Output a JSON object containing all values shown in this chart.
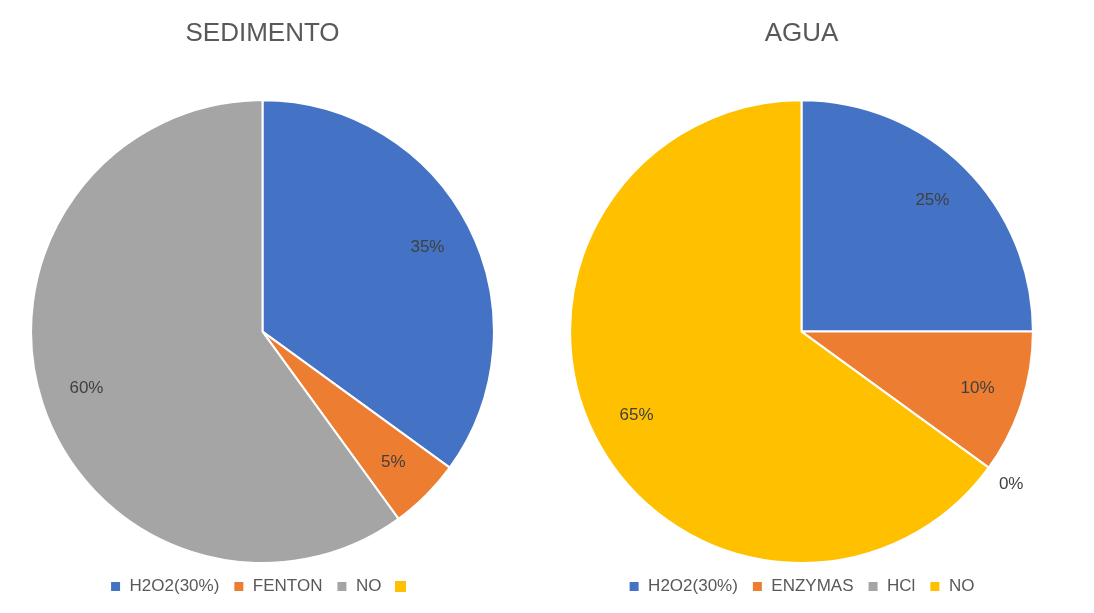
{
  "chart_data": [
    {
      "type": "pie",
      "title": "SEDIMENTO",
      "categories": [
        "H2O2(30%)",
        "FENTON",
        "NO",
        null
      ],
      "values": [
        35,
        5,
        60,
        0
      ],
      "colors": [
        "#4472c4",
        "#ed7d31",
        "#a5a5a5",
        "#ffc000"
      ],
      "value_labels": [
        "35%",
        "5%",
        "60%",
        null
      ],
      "legend": "bottom"
    },
    {
      "type": "pie",
      "title": "AGUA",
      "categories": [
        "H2O2(30%)",
        "ENZYMAS",
        "HCl",
        "NO"
      ],
      "values": [
        25,
        10,
        0,
        65
      ],
      "colors": [
        "#4472c4",
        "#ed7d31",
        "#a5a5a5",
        "#ffc000"
      ],
      "value_labels": [
        "25%",
        "10%",
        "0%",
        "65%"
      ],
      "legend": "bottom"
    }
  ]
}
